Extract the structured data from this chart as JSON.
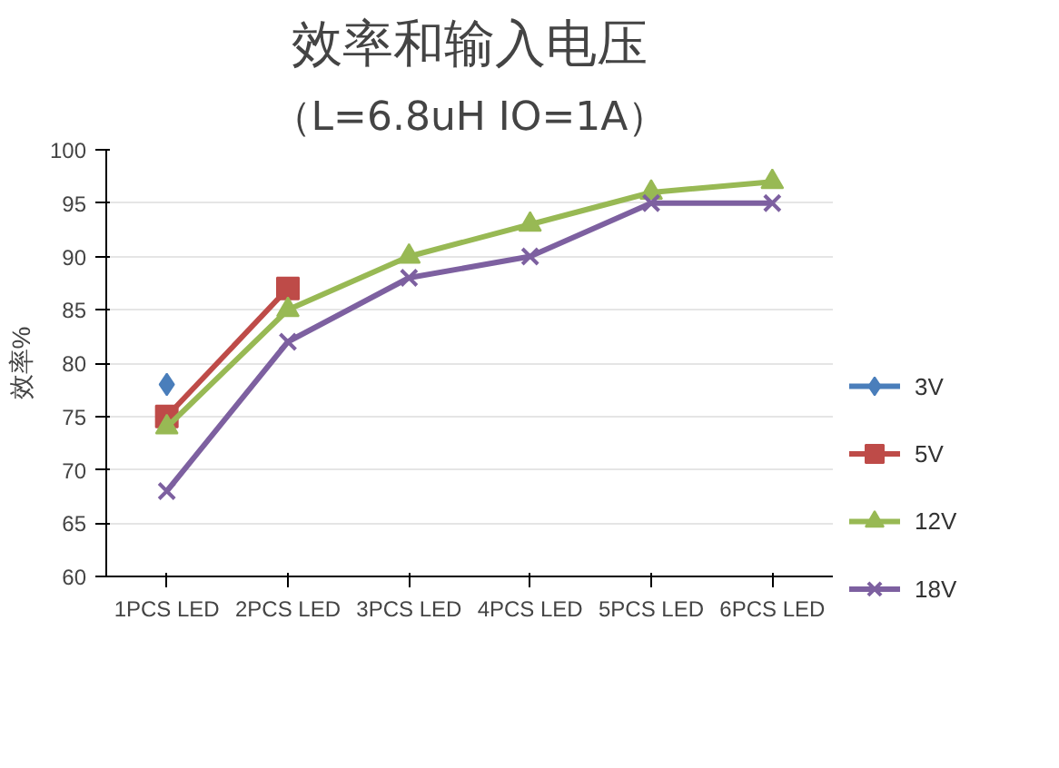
{
  "chart_data": {
    "type": "line",
    "title": "效率和输入电压",
    "subtitle": "（L=6.8uH IO=1A）",
    "ylabel": "效率%",
    "categories": [
      "1PCS LED",
      "2PCS LED",
      "3PCS LED",
      "4PCS LED",
      "5PCS LED",
      "6PCS LED"
    ],
    "series": [
      {
        "name": "3V",
        "color": "#4a7ebb",
        "marker": "diamond",
        "values": [
          78,
          null,
          null,
          null,
          null,
          null
        ]
      },
      {
        "name": "5V",
        "color": "#be4b48",
        "marker": "square",
        "values": [
          75,
          87,
          null,
          null,
          null,
          null
        ]
      },
      {
        "name": "12V",
        "color": "#98b954",
        "marker": "triangle",
        "values": [
          74,
          85,
          90,
          93,
          96,
          97
        ]
      },
      {
        "name": "18V",
        "color": "#7d60a0",
        "marker": "cross",
        "values": [
          68,
          82,
          88,
          90,
          95,
          95
        ]
      }
    ],
    "ylim": [
      60,
      100
    ],
    "yticks": [
      60,
      65,
      70,
      75,
      80,
      85,
      90,
      95,
      100
    ],
    "grid": "y",
    "legend": "right"
  }
}
